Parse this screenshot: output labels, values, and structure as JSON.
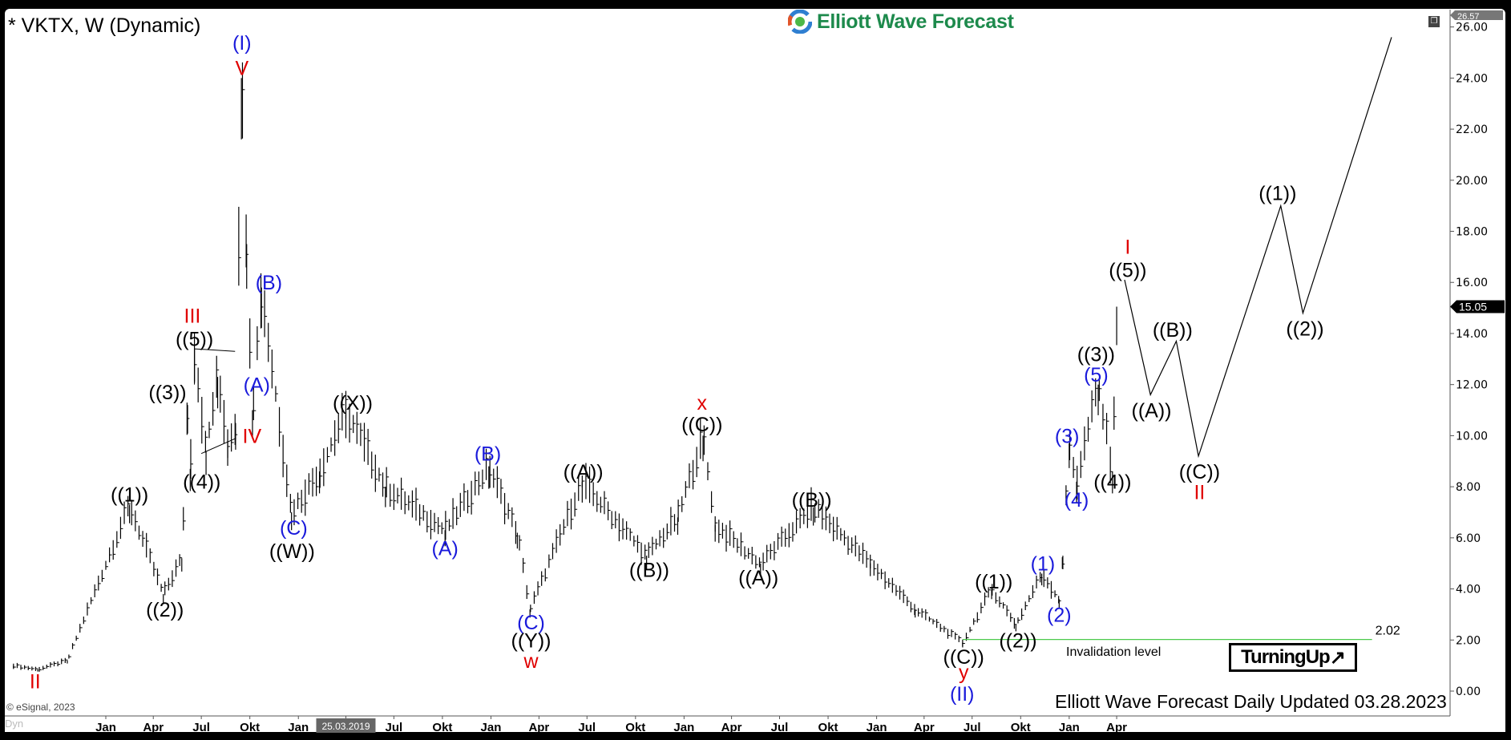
{
  "header": {
    "title": "* VKTX, W (Dynamic)",
    "logo_text": "Elliott Wave Forecast"
  },
  "footer": {
    "updated": "Elliott Wave Forecast Daily Updated 03.28.2023",
    "copyright": "© eSignal, 2023",
    "dyn": "Dyn",
    "badge": "TurningUp",
    "badge_arrow": "↗"
  },
  "colors": {
    "blue": "#1a1adb",
    "red": "#e00000",
    "black": "#000000",
    "invalidation": "#4cc94c",
    "logo_green": "#1d8a4c"
  },
  "chart_data": {
    "type": "ohlc",
    "symbol": "VKTX",
    "interval": "W",
    "ylim": [
      -0.5,
      26.6
    ],
    "y_ticks": [
      "0.00",
      "2.00",
      "4.00",
      "6.00",
      "8.00",
      "10.00",
      "12.00",
      "14.00",
      "16.00",
      "18.00",
      "20.00",
      "22.00",
      "24.00",
      "26.00"
    ],
    "x_ticks": [
      {
        "label": "Jan",
        "date": "2018-01-01"
      },
      {
        "label": "Apr",
        "date": "2018-04-01"
      },
      {
        "label": "Jul",
        "date": "2018-07-01"
      },
      {
        "label": "Okt",
        "date": "2018-10-01"
      },
      {
        "label": "Jan",
        "date": "2019-01-01"
      },
      {
        "label": "25.03.2019",
        "date": "2019-04-01",
        "highlight": true
      },
      {
        "label": "Jul",
        "date": "2019-07-01"
      },
      {
        "label": "Okt",
        "date": "2019-10-01"
      },
      {
        "label": "Jan",
        "date": "2020-01-01"
      },
      {
        "label": "Apr",
        "date": "2020-04-01"
      },
      {
        "label": "Jul",
        "date": "2020-07-01"
      },
      {
        "label": "Okt",
        "date": "2020-10-01"
      },
      {
        "label": "Jan",
        "date": "2021-01-01"
      },
      {
        "label": "Apr",
        "date": "2021-04-01"
      },
      {
        "label": "Jul",
        "date": "2021-07-01"
      },
      {
        "label": "Okt",
        "date": "2021-10-01"
      },
      {
        "label": "Jan",
        "date": "2022-01-01"
      },
      {
        "label": "Apr",
        "date": "2022-04-01"
      },
      {
        "label": "Jul",
        "date": "2022-07-01"
      },
      {
        "label": "Okt",
        "date": "2022-10-01"
      },
      {
        "label": "Jan",
        "date": "2023-01-01"
      },
      {
        "label": "Apr",
        "date": "2023-04-01"
      }
    ],
    "price_tags": {
      "high": "26.57",
      "last": "15.05"
    },
    "price_path": [
      [
        "2017-07-10",
        1.0
      ],
      [
        "2017-08-25",
        0.85
      ],
      [
        "2017-10-20",
        1.2
      ],
      [
        "2018-02-15",
        7.3
      ],
      [
        "2018-04-20",
        3.8
      ],
      [
        "2018-05-25",
        5.2
      ],
      [
        "2018-06-05",
        11.2
      ],
      [
        "2018-06-10",
        8.7
      ],
      [
        "2018-06-18",
        13.4
      ],
      [
        "2018-07-10",
        9.4
      ],
      [
        "2018-08-01",
        12.3
      ],
      [
        "2018-08-20",
        9.8
      ],
      [
        "2018-09-04",
        10.5
      ],
      [
        "2018-09-15",
        24.0
      ],
      [
        "2018-09-25",
        17.5
      ],
      [
        "2018-10-06",
        11.0
      ],
      [
        "2018-10-23",
        15.8
      ],
      [
        "2018-12-19",
        7.0
      ],
      [
        "2019-02-10",
        8.6
      ],
      [
        "2019-04-01",
        11.0
      ],
      [
        "2019-06-15",
        8.0
      ],
      [
        "2019-10-06",
        6.3
      ],
      [
        "2019-12-28",
        8.8
      ],
      [
        "2020-02-20",
        6.2
      ],
      [
        "2020-03-15",
        3.2
      ],
      [
        "2020-06-22",
        8.2
      ],
      [
        "2020-10-22",
        5.3
      ],
      [
        "2020-12-20",
        6.8
      ],
      [
        "2021-02-06",
        10.0
      ],
      [
        "2021-03-01",
        6.5
      ],
      [
        "2021-05-26",
        5.0
      ],
      [
        "2021-09-03",
        7.2
      ],
      [
        "2021-12-20",
        5.0
      ],
      [
        "2022-03-15",
        3.2
      ],
      [
        "2022-06-13",
        1.9
      ],
      [
        "2022-08-07",
        4.0
      ],
      [
        "2022-09-22",
        2.6
      ],
      [
        "2022-11-10",
        4.6
      ],
      [
        "2022-12-13",
        3.6
      ],
      [
        "2022-12-20",
        5.3
      ],
      [
        "2023-01-01",
        9.7
      ],
      [
        "2023-01-15",
        8.2
      ],
      [
        "2023-02-25",
        12.0
      ],
      [
        "2023-03-24",
        8.6
      ],
      [
        "2023-04-01",
        15.05
      ]
    ],
    "projection": [
      [
        "2023-04-16",
        16.1
      ],
      [
        "2023-06-04",
        11.6
      ],
      [
        "2023-07-23",
        13.7
      ],
      [
        "2023-09-03",
        9.2
      ],
      [
        "2024-02-06",
        19.0
      ],
      [
        "2024-03-19",
        14.8
      ],
      [
        "2024-09-03",
        25.6
      ]
    ],
    "trendlines": [
      [
        [
          "2018-06-18",
          13.4
        ],
        [
          "2018-09-03",
          13.3
        ]
      ],
      [
        [
          "2018-06-18",
          13.4
        ],
        [
          "2018-06-18",
          12.0
        ]
      ],
      [
        [
          "2018-07-01",
          9.3
        ],
        [
          "2018-09-05",
          9.9
        ]
      ]
    ],
    "invalidation": {
      "value": 2.02,
      "label": "2.02",
      "text": "Invalidation level",
      "from": "2022-06-13",
      "to": "2024-07-28"
    },
    "annotations": [
      {
        "text": "(I)",
        "color": "blue",
        "date": "2018-09-16",
        "price": 25.4
      },
      {
        "text": "V",
        "color": "red",
        "date": "2018-09-16",
        "price": 24.4
      },
      {
        "text": "III",
        "color": "red",
        "date": "2018-06-14",
        "price": 14.7
      },
      {
        "text": "((5))",
        "color": "black",
        "date": "2018-06-18",
        "price": 13.8
      },
      {
        "text": "((3))",
        "color": "black",
        "date": "2018-04-28",
        "price": 11.7
      },
      {
        "text": "((4))",
        "color": "black",
        "date": "2018-07-02",
        "price": 8.2
      },
      {
        "text": "(A)",
        "color": "blue",
        "date": "2018-10-14",
        "price": 12.0
      },
      {
        "text": "IV",
        "color": "red",
        "date": "2018-10-05",
        "price": 10.0
      },
      {
        "text": "(B)",
        "color": "blue",
        "date": "2018-11-06",
        "price": 16.0
      },
      {
        "text": "((1))",
        "color": "black",
        "date": "2018-02-15",
        "price": 7.7
      },
      {
        "text": "((2))",
        "color": "black",
        "date": "2018-04-23",
        "price": 3.2
      },
      {
        "text": "II",
        "color": "red",
        "date": "2017-08-20",
        "price": 0.4
      },
      {
        "text": "(C)",
        "color": "blue",
        "date": "2018-12-23",
        "price": 6.4
      },
      {
        "text": "((W))",
        "color": "black",
        "date": "2018-12-20",
        "price": 5.5
      },
      {
        "text": "((X))",
        "color": "black",
        "date": "2019-04-14",
        "price": 11.3
      },
      {
        "text": "(A)",
        "color": "blue",
        "date": "2019-10-06",
        "price": 5.6
      },
      {
        "text": "(B)",
        "color": "blue",
        "date": "2019-12-26",
        "price": 9.3
      },
      {
        "text": "(C)",
        "color": "blue",
        "date": "2020-03-17",
        "price": 2.7
      },
      {
        "text": "((Y))",
        "color": "black",
        "date": "2020-03-17",
        "price": 2.0
      },
      {
        "text": "w",
        "color": "red",
        "date": "2020-03-17",
        "price": 1.2
      },
      {
        "text": "((A))",
        "color": "black",
        "date": "2020-06-24",
        "price": 8.6
      },
      {
        "text": "((B))",
        "color": "black",
        "date": "2020-10-27",
        "price": 4.75
      },
      {
        "text": "x",
        "color": "red",
        "date": "2021-02-04",
        "price": 11.3
      },
      {
        "text": "((C))",
        "color": "black",
        "date": "2021-02-04",
        "price": 10.45
      },
      {
        "text": "((A))",
        "color": "black",
        "date": "2021-05-22",
        "price": 4.45
      },
      {
        "text": "((B))",
        "color": "black",
        "date": "2021-08-31",
        "price": 7.5
      },
      {
        "text": "((1))",
        "color": "black",
        "date": "2022-08-11",
        "price": 4.3
      },
      {
        "text": "(1)",
        "color": "blue",
        "date": "2022-11-12",
        "price": 5.0
      },
      {
        "text": "(2)",
        "color": "blue",
        "date": "2022-12-13",
        "price": 3.0
      },
      {
        "text": "((2))",
        "color": "black",
        "date": "2022-09-26",
        "price": 2.0
      },
      {
        "text": "((C))",
        "color": "black",
        "date": "2022-06-15",
        "price": 1.35
      },
      {
        "text": "y",
        "color": "red",
        "date": "2022-06-15",
        "price": 0.75
      },
      {
        "text": "(II)",
        "color": "blue",
        "date": "2022-06-12",
        "price": -0.1
      },
      {
        "text": "(3)",
        "color": "blue",
        "date": "2022-12-28",
        "price": 10.0
      },
      {
        "text": "(4)",
        "color": "blue",
        "date": "2023-01-15",
        "price": 7.5
      },
      {
        "text": "(5)",
        "color": "blue",
        "date": "2023-02-21",
        "price": 12.4
      },
      {
        "text": "((3))",
        "color": "black",
        "date": "2023-02-21",
        "price": 13.2
      },
      {
        "text": "((4))",
        "color": "black",
        "date": "2023-03-24",
        "price": 8.2
      },
      {
        "text": "I",
        "color": "red",
        "date": "2023-04-22",
        "price": 17.4
      },
      {
        "text": "((5))",
        "color": "black",
        "date": "2023-04-22",
        "price": 16.5
      },
      {
        "text": "((A))",
        "color": "black",
        "date": "2023-06-06",
        "price": 11.0
      },
      {
        "text": "((B))",
        "color": "black",
        "date": "2023-07-16",
        "price": 14.15
      },
      {
        "text": "((C))",
        "color": "black",
        "date": "2023-09-05",
        "price": 8.6
      },
      {
        "text": "II",
        "color": "red",
        "date": "2023-09-05",
        "price": 7.8
      },
      {
        "text": "((1))",
        "color": "black",
        "date": "2024-01-31",
        "price": 19.5
      },
      {
        "text": "((2))",
        "color": "black",
        "date": "2024-03-23",
        "price": 14.2
      }
    ]
  }
}
